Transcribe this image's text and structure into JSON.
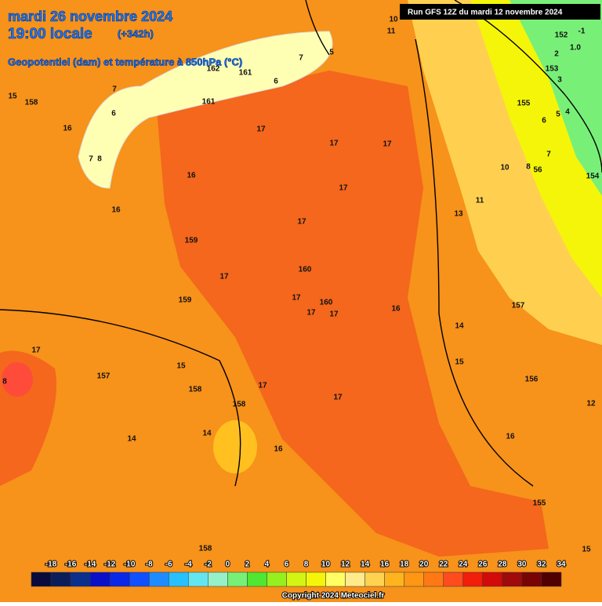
{
  "header": {
    "date": "mardi 26 novembre 2024",
    "time": "19:00 locale",
    "lead": "(+342h)",
    "subtitle": "Geopotentiel (dam) et température à 850hPa (°C)",
    "run": "Run GFS 12Z du mardi 12 novembre 2024"
  },
  "map_labels": [
    "15",
    "158",
    "16",
    "16",
    "16",
    "17",
    "17",
    "17",
    "17",
    "13",
    "11",
    "10",
    "8",
    "56",
    "7",
    "6",
    "5",
    "4",
    "3",
    "153",
    "2",
    "1.0",
    "152",
    "-1",
    "154",
    "155",
    "10",
    "11",
    "159",
    "17",
    "17",
    "160",
    "17",
    "160",
    "17",
    "17",
    "16",
    "14",
    "15",
    "157",
    "156",
    "12",
    "16",
    "155",
    "15",
    "159",
    "17",
    "157",
    "15",
    "158",
    "158",
    "17",
    "17",
    "14",
    "14",
    "16",
    "158",
    "161",
    "162",
    "161",
    "7",
    "6",
    "5",
    "7",
    "6",
    "7",
    "8",
    "8"
  ],
  "colorbar": {
    "ticks": [
      -18,
      -16,
      -14,
      -12,
      -10,
      -8,
      -6,
      -4,
      -2,
      0,
      2,
      4,
      6,
      8,
      10,
      12,
      14,
      16,
      18,
      20,
      22,
      24,
      26,
      28,
      30,
      32,
      34
    ],
    "colors": [
      "#0a0a3c",
      "#0c1e5a",
      "#0a2f8c",
      "#0a10c8",
      "#0a28e6",
      "#1050ff",
      "#1e8cff",
      "#28c0ff",
      "#64e6f0",
      "#96f0c8",
      "#78f078",
      "#50e632",
      "#96f01e",
      "#d2f514",
      "#f5f50a",
      "#ffff64",
      "#ffeb8c",
      "#ffd250",
      "#ffb41e",
      "#ff9614",
      "#ff7814",
      "#ff4b1e",
      "#f01e0a",
      "#d20a0a",
      "#a00a0a",
      "#780505",
      "#500000"
    ]
  },
  "copyright": "Copyright 2024 Meteociel.fr"
}
